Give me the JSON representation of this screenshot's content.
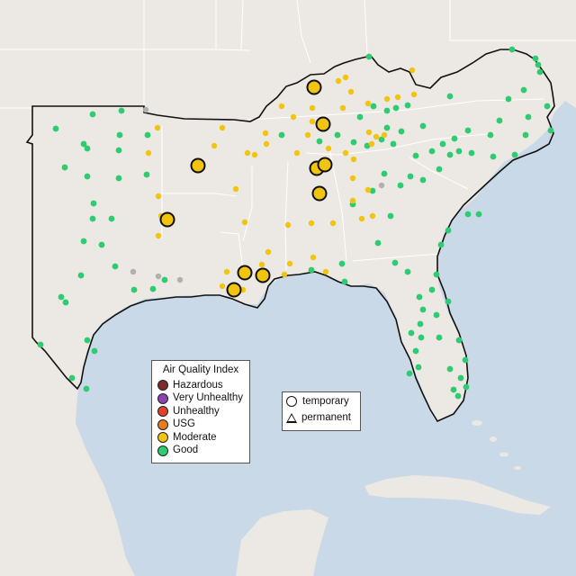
{
  "map": {
    "region": "Southeastern United States",
    "background_colors": {
      "water": "#c9d9e8",
      "land": "#ece8e3",
      "boundary": "#111111",
      "state_lines": "#ffffff"
    }
  },
  "aqi_legend": {
    "title": "Air Quality Index",
    "items": [
      {
        "label": "Hazardous",
        "color": "#7e2b2b"
      },
      {
        "label": "Very Unhealthy",
        "color": "#8e44ad"
      },
      {
        "label": "Unhealthy",
        "color": "#e3402a"
      },
      {
        "label": "USG",
        "color": "#e67e22"
      },
      {
        "label": "Moderate",
        "color": "#f1c40f"
      },
      {
        "label": "Good",
        "color": "#2ecc71"
      }
    ]
  },
  "site_legend": {
    "items": [
      {
        "label": "temporary",
        "icon": "circle-icon"
      },
      {
        "label": "permanent",
        "icon": "triangle-icon"
      }
    ]
  },
  "colors": {
    "good": "#2ecc71",
    "moderate": "#f1c40f",
    "no_data": "#b0b0b0"
  }
}
